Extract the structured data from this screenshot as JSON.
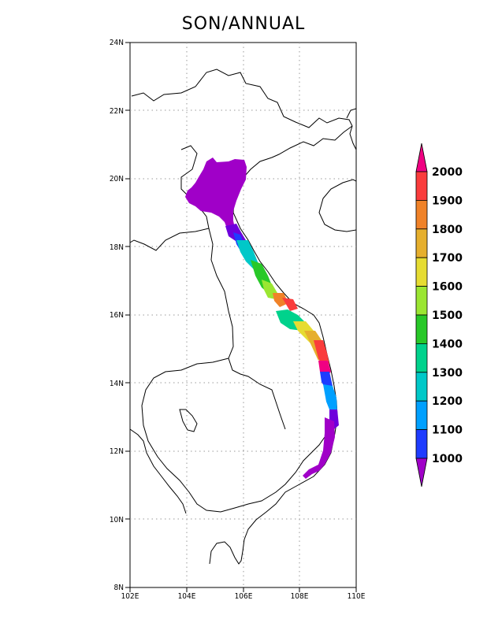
{
  "title": "SON/ANNUAL",
  "map": {
    "lon_ticks": [
      "102E",
      "104E",
      "106E",
      "108E",
      "110E"
    ],
    "lat_ticks": [
      "8N",
      "10N",
      "12N",
      "14N",
      "16N",
      "18N",
      "20N",
      "22N",
      "24N"
    ],
    "lon_range": [
      102,
      110
    ],
    "lat_range": [
      8,
      24
    ],
    "grid": "dotted"
  },
  "colorbar": {
    "labels": [
      "1000",
      "1100",
      "1200",
      "1300",
      "1400",
      "1500",
      "1600",
      "1700",
      "1800",
      "1900",
      "2000"
    ],
    "colors": [
      "#a000c8",
      "#6e00dc",
      "#1e3cff",
      "#00a0ff",
      "#00c8c8",
      "#00d28c",
      "#28c828",
      "#9be632",
      "#e6dc32",
      "#e6af2d",
      "#f08228",
      "#fa3c3c",
      "#f00082"
    ],
    "orientation": "vertical",
    "placement": "right"
  }
}
